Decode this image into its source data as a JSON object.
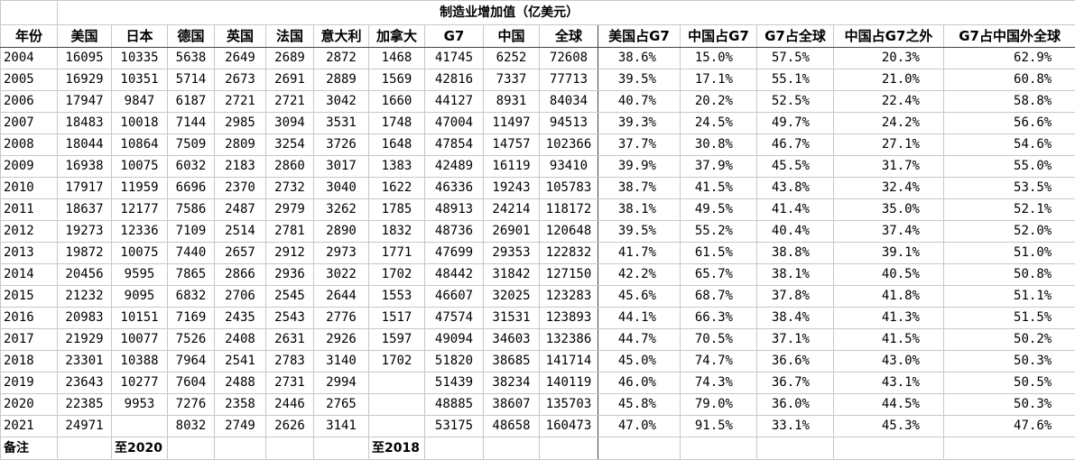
{
  "table": {
    "title": "制造业增加值（亿美元）",
    "header": [
      "年份",
      "美国",
      "日本",
      "德国",
      "英国",
      "法国",
      "意大利",
      "加拿大",
      "G7",
      "中国",
      "全球",
      "美国占G7",
      "中国占G7",
      "G7占全球",
      "中国占G7之外",
      "G7占中国外全球"
    ],
    "rows": [
      [
        2004,
        16095,
        10335,
        5638,
        2649,
        2689,
        2872,
        1468,
        41745,
        6252,
        72608,
        "38.6%",
        "15.0%",
        "57.5%",
        "20.3%",
        "62.9%"
      ],
      [
        2005,
        16929,
        10351,
        5714,
        2673,
        2691,
        2889,
        1569,
        42816,
        7337,
        77713,
        "39.5%",
        "17.1%",
        "55.1%",
        "21.0%",
        "60.8%"
      ],
      [
        2006,
        17947,
        9847,
        6187,
        2721,
        2721,
        3042,
        1660,
        44127,
        8931,
        84034,
        "40.7%",
        "20.2%",
        "52.5%",
        "22.4%",
        "58.8%"
      ],
      [
        2007,
        18483,
        10018,
        7144,
        2985,
        3094,
        3531,
        1748,
        47004,
        11497,
        94513,
        "39.3%",
        "24.5%",
        "49.7%",
        "24.2%",
        "56.6%"
      ],
      [
        2008,
        18044,
        10864,
        7509,
        2809,
        3254,
        3726,
        1648,
        47854,
        14757,
        102366,
        "37.7%",
        "30.8%",
        "46.7%",
        "27.1%",
        "54.6%"
      ],
      [
        2009,
        16938,
        10075,
        6032,
        2183,
        2860,
        3017,
        1383,
        42489,
        16119,
        93410,
        "39.9%",
        "37.9%",
        "45.5%",
        "31.7%",
        "55.0%"
      ],
      [
        2010,
        17917,
        11959,
        6696,
        2370,
        2732,
        3040,
        1622,
        46336,
        19243,
        105783,
        "38.7%",
        "41.5%",
        "43.8%",
        "32.4%",
        "53.5%"
      ],
      [
        2011,
        18637,
        12177,
        7586,
        2487,
        2979,
        3262,
        1785,
        48913,
        24214,
        118172,
        "38.1%",
        "49.5%",
        "41.4%",
        "35.0%",
        "52.1%"
      ],
      [
        2012,
        19273,
        12336,
        7109,
        2514,
        2781,
        2890,
        1832,
        48736,
        26901,
        120648,
        "39.5%",
        "55.2%",
        "40.4%",
        "37.4%",
        "52.0%"
      ],
      [
        2013,
        19872,
        10075,
        7440,
        2657,
        2912,
        2973,
        1771,
        47699,
        29353,
        122832,
        "41.7%",
        "61.5%",
        "38.8%",
        "39.1%",
        "51.0%"
      ],
      [
        2014,
        20456,
        9595,
        7865,
        2866,
        2936,
        3022,
        1702,
        48442,
        31842,
        127150,
        "42.2%",
        "65.7%",
        "38.1%",
        "40.5%",
        "50.8%"
      ],
      [
        2015,
        21232,
        9095,
        6832,
        2706,
        2545,
        2644,
        1553,
        46607,
        32025,
        123283,
        "45.6%",
        "68.7%",
        "37.8%",
        "41.8%",
        "51.1%"
      ],
      [
        2016,
        20983,
        10151,
        7169,
        2435,
        2543,
        2776,
        1517,
        47574,
        31531,
        123893,
        "44.1%",
        "66.3%",
        "38.4%",
        "41.3%",
        "51.5%"
      ],
      [
        2017,
        21929,
        10077,
        7526,
        2408,
        2631,
        2926,
        1597,
        49094,
        34603,
        132386,
        "44.7%",
        "70.5%",
        "37.1%",
        "41.5%",
        "50.2%"
      ],
      [
        2018,
        23301,
        10388,
        7964,
        2541,
        2783,
        3140,
        1702,
        51820,
        38685,
        141714,
        "45.0%",
        "74.7%",
        "36.6%",
        "43.0%",
        "50.3%"
      ],
      [
        2019,
        23643,
        10277,
        7604,
        2488,
        2731,
        2994,
        null,
        51439,
        38234,
        140119,
        "46.0%",
        "74.3%",
        "36.7%",
        "43.1%",
        "50.5%"
      ],
      [
        2020,
        22385,
        9953,
        7276,
        2358,
        2446,
        2765,
        null,
        48885,
        38607,
        135703,
        "45.8%",
        "79.0%",
        "36.0%",
        "44.5%",
        "50.3%"
      ],
      [
        2021,
        24971,
        null,
        8032,
        2749,
        2626,
        3141,
        null,
        53175,
        48658,
        160473,
        "47.0%",
        "91.5%",
        "33.1%",
        "45.3%",
        "47.6%"
      ]
    ],
    "footer": [
      "备注",
      null,
      "至2020",
      null,
      null,
      null,
      null,
      "至2018",
      null,
      null,
      null,
      null,
      null,
      null,
      null,
      null
    ]
  }
}
